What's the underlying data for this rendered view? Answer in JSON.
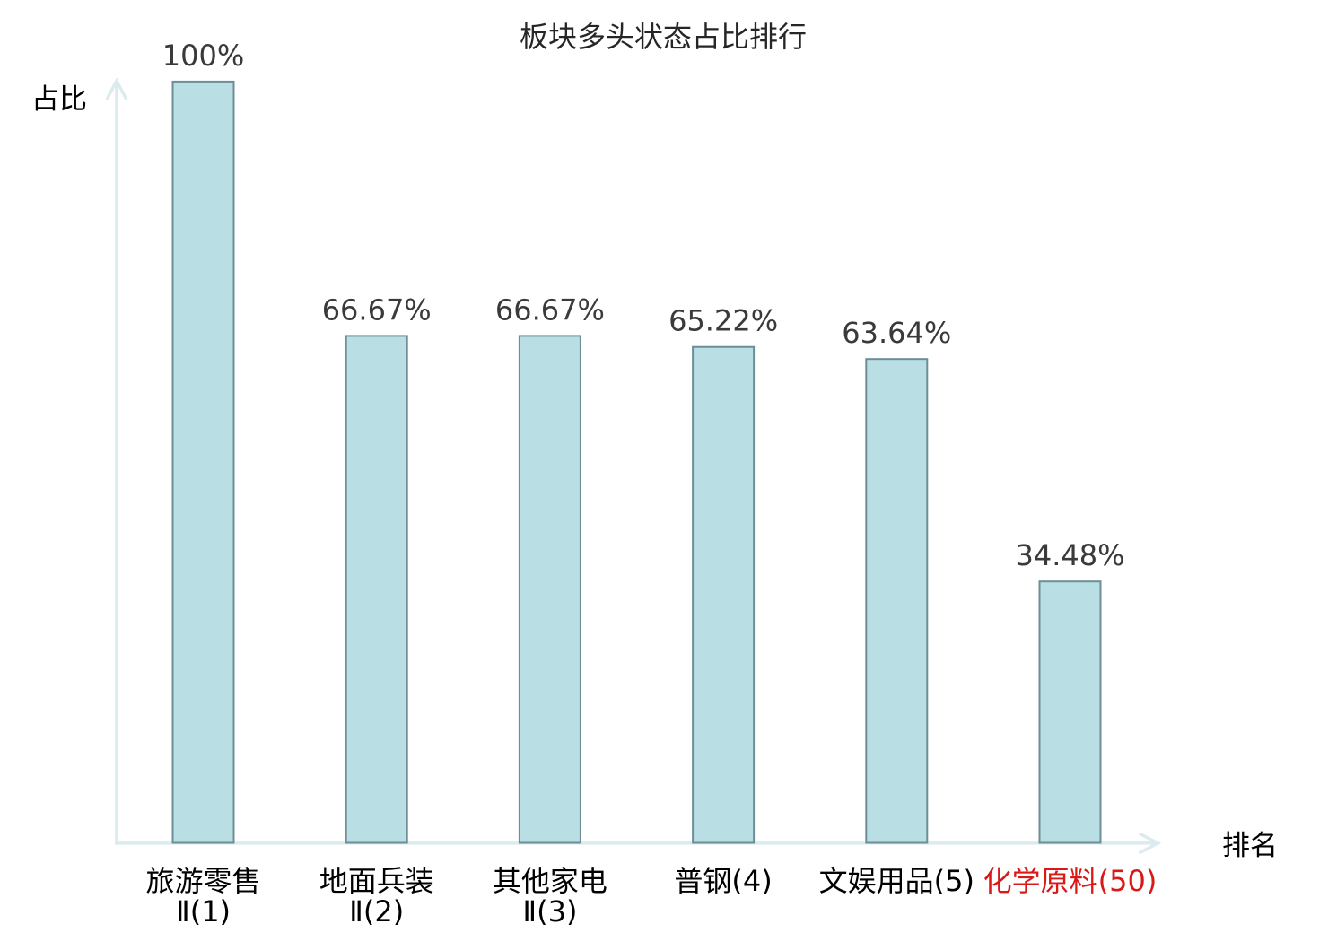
{
  "chart_data": {
    "type": "bar",
    "title": "板块多头状态占比排行",
    "xlabel": "排名",
    "ylabel": "占比",
    "categories": [
      "旅游零售Ⅱ(1)",
      "地面兵装Ⅱ(2)",
      "其他家电Ⅱ(3)",
      "普钢(4)",
      "文娱用品(5)",
      "化学原料(50)"
    ],
    "tick_lines": [
      [
        "旅游零售",
        "Ⅱ(1)"
      ],
      [
        "地面兵装",
        "Ⅱ(2)"
      ],
      [
        "其他家电",
        "Ⅱ(3)"
      ],
      [
        "普钢(4)"
      ],
      [
        "文娱用品(5)"
      ],
      [
        "化学原料(50)"
      ]
    ],
    "values": [
      100,
      66.67,
      66.67,
      65.22,
      63.64,
      34.48
    ],
    "value_labels": [
      "100%",
      "66.67%",
      "66.67%",
      "65.22%",
      "63.64%",
      "34.48%"
    ],
    "ylim": [
      0,
      100
    ],
    "grid": false,
    "legend": false,
    "highlight_index": 5,
    "colors": {
      "background": "#ffffff",
      "bar_fill": "#b9dee3",
      "bar_edge": "#6d8e97",
      "axis": "#dcebed",
      "title_text": "#262626",
      "value_text": "#3a3a3a",
      "tick_text": "#000000",
      "highlight_text": "#d91818"
    }
  }
}
